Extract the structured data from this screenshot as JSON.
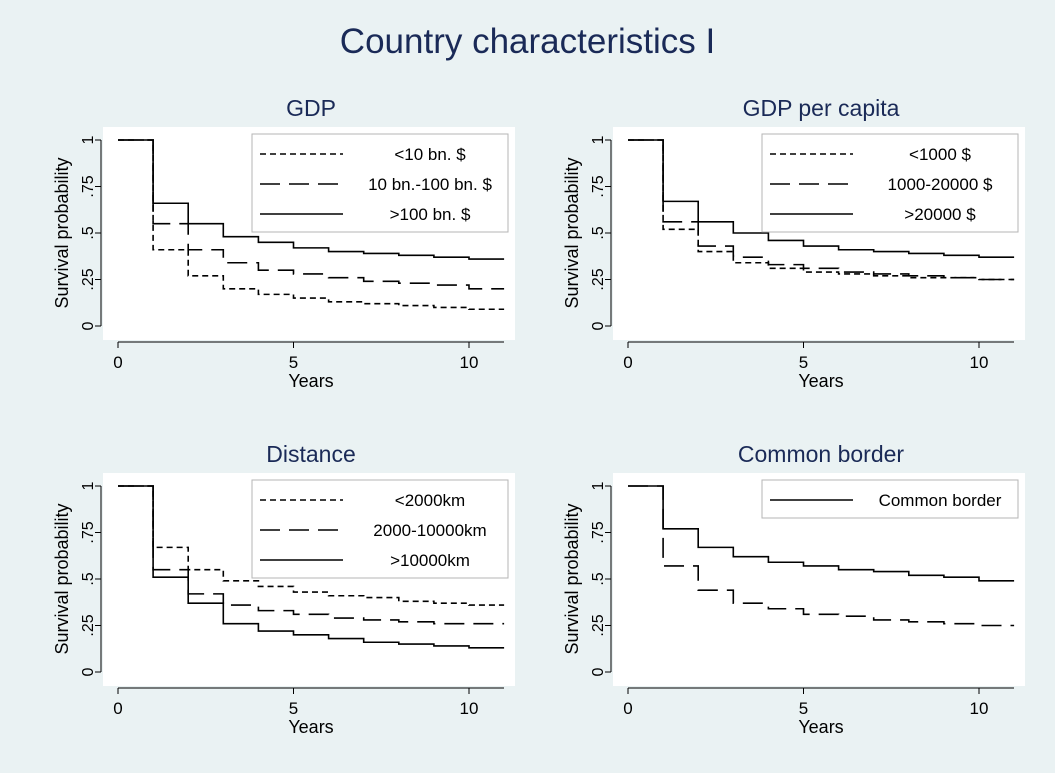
{
  "figure": {
    "title": "Country characteristics I",
    "colors": {
      "background": "#eaf2f3",
      "plot_area": "#ffffff",
      "title": "#1a2a57",
      "line": "#000000"
    }
  },
  "chart_data": [
    {
      "type": "line",
      "step": true,
      "title": "GDP",
      "xlabel": "Years",
      "ylabel": "Survival probability",
      "xlim": [
        0,
        11
      ],
      "ylim": [
        0,
        1
      ],
      "xticks": [
        0,
        5,
        10
      ],
      "yticks": [
        0,
        0.25,
        0.5,
        0.75,
        1
      ],
      "ytick_labels": [
        "0",
        ".25",
        ".5",
        ".75",
        "1"
      ],
      "grid": false,
      "legend_position": "top-right",
      "series": [
        {
          "name": "<10 bn. $",
          "style": "short-dash",
          "x": [
            0,
            1,
            2,
            3,
            4,
            5,
            6,
            7,
            8,
            9,
            10,
            11
          ],
          "y": [
            1,
            0.41,
            0.27,
            0.2,
            0.17,
            0.15,
            0.13,
            0.12,
            0.11,
            0.1,
            0.09,
            0.09
          ]
        },
        {
          "name": "10 bn.-100 bn. $",
          "style": "long-dash",
          "x": [
            0,
            1,
            2,
            3,
            4,
            5,
            6,
            7,
            8,
            9,
            10,
            11
          ],
          "y": [
            1,
            0.55,
            0.41,
            0.34,
            0.3,
            0.28,
            0.26,
            0.24,
            0.23,
            0.22,
            0.2,
            0.2
          ]
        },
        {
          "name": ">100 bn. $",
          "style": "solid",
          "x": [
            0,
            1,
            2,
            3,
            4,
            5,
            6,
            7,
            8,
            9,
            10,
            11
          ],
          "y": [
            1,
            0.66,
            0.55,
            0.48,
            0.45,
            0.42,
            0.4,
            0.39,
            0.38,
            0.37,
            0.36,
            0.36
          ]
        }
      ]
    },
    {
      "type": "line",
      "step": true,
      "title": "GDP per capita",
      "xlabel": "Years",
      "ylabel": "Survival probability",
      "xlim": [
        0,
        11
      ],
      "ylim": [
        0,
        1
      ],
      "xticks": [
        0,
        5,
        10
      ],
      "yticks": [
        0,
        0.25,
        0.5,
        0.75,
        1
      ],
      "ytick_labels": [
        "0",
        ".25",
        ".5",
        ".75",
        "1"
      ],
      "grid": false,
      "legend_position": "top-right",
      "series": [
        {
          "name": "<1000 $",
          "style": "short-dash",
          "x": [
            0,
            1,
            2,
            3,
            4,
            5,
            6,
            7,
            8,
            9,
            10,
            11
          ],
          "y": [
            1,
            0.52,
            0.4,
            0.34,
            0.31,
            0.29,
            0.28,
            0.27,
            0.26,
            0.26,
            0.25,
            0.25
          ]
        },
        {
          "name": "1000-20000 $",
          "style": "long-dash",
          "x": [
            0,
            1,
            2,
            3,
            4,
            5,
            6,
            7,
            8,
            9,
            10,
            11
          ],
          "y": [
            1,
            0.56,
            0.43,
            0.37,
            0.33,
            0.31,
            0.29,
            0.28,
            0.27,
            0.26,
            0.25,
            0.25
          ]
        },
        {
          "name": ">20000 $",
          "style": "solid",
          "x": [
            0,
            1,
            2,
            3,
            4,
            5,
            6,
            7,
            8,
            9,
            10,
            11
          ],
          "y": [
            1,
            0.67,
            0.56,
            0.5,
            0.46,
            0.43,
            0.41,
            0.4,
            0.39,
            0.38,
            0.37,
            0.37
          ]
        }
      ]
    },
    {
      "type": "line",
      "step": true,
      "title": "Distance",
      "xlabel": "Years",
      "ylabel": "Survival probability",
      "xlim": [
        0,
        11
      ],
      "ylim": [
        0,
        1
      ],
      "xticks": [
        0,
        5,
        10
      ],
      "yticks": [
        0,
        0.25,
        0.5,
        0.75,
        1
      ],
      "ytick_labels": [
        "0",
        ".25",
        ".5",
        ".75",
        "1"
      ],
      "grid": false,
      "legend_position": "top-right",
      "series": [
        {
          "name": "<2000km",
          "style": "short-dash",
          "x": [
            0,
            1,
            2,
            3,
            4,
            5,
            6,
            7,
            8,
            9,
            10,
            11
          ],
          "y": [
            1,
            0.67,
            0.55,
            0.49,
            0.46,
            0.43,
            0.41,
            0.4,
            0.38,
            0.37,
            0.36,
            0.36
          ]
        },
        {
          "name": "2000-10000km",
          "style": "long-dash",
          "x": [
            0,
            1,
            2,
            3,
            4,
            5,
            6,
            7,
            8,
            9,
            10,
            11
          ],
          "y": [
            1,
            0.55,
            0.42,
            0.36,
            0.33,
            0.31,
            0.29,
            0.28,
            0.27,
            0.26,
            0.26,
            0.26
          ]
        },
        {
          "name": ">10000km",
          "style": "solid",
          "x": [
            0,
            1,
            2,
            3,
            4,
            5,
            6,
            7,
            8,
            9,
            10,
            11
          ],
          "y": [
            1,
            0.51,
            0.37,
            0.26,
            0.22,
            0.2,
            0.18,
            0.16,
            0.15,
            0.14,
            0.13,
            0.13
          ]
        }
      ]
    },
    {
      "type": "line",
      "step": true,
      "title": "Common border",
      "xlabel": "Years",
      "ylabel": "Survival probability",
      "xlim": [
        0,
        11
      ],
      "ylim": [
        0,
        1
      ],
      "xticks": [
        0,
        5,
        10
      ],
      "yticks": [
        0,
        0.25,
        0.5,
        0.75,
        1
      ],
      "ytick_labels": [
        "0",
        ".25",
        ".5",
        ".75",
        "1"
      ],
      "grid": false,
      "legend_position": "top-right",
      "series": [
        {
          "name": "Common border",
          "style": "solid",
          "x": [
            0,
            1,
            2,
            3,
            4,
            5,
            6,
            7,
            8,
            9,
            10,
            11
          ],
          "y": [
            1,
            0.77,
            0.67,
            0.62,
            0.59,
            0.57,
            0.55,
            0.54,
            0.52,
            0.51,
            0.49,
            0.49
          ]
        },
        {
          "style": "long-dash",
          "x": [
            0,
            1,
            2,
            3,
            4,
            5,
            6,
            7,
            8,
            9,
            10,
            11
          ],
          "y": [
            1,
            0.57,
            0.44,
            0.37,
            0.34,
            0.31,
            0.3,
            0.28,
            0.27,
            0.26,
            0.25,
            0.25
          ]
        }
      ]
    }
  ]
}
